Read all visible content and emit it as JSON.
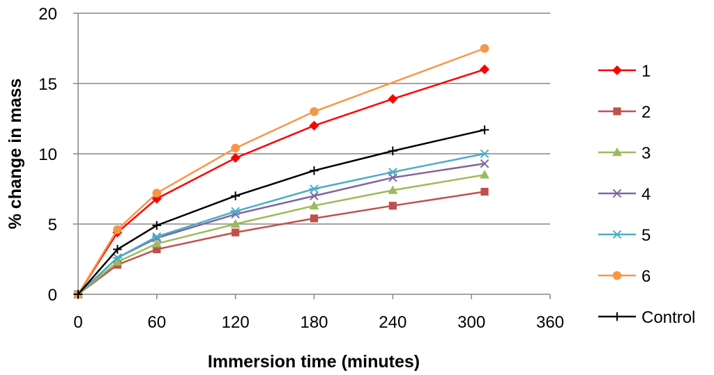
{
  "chart_data": {
    "type": "line",
    "title": "",
    "xlabel": "Immersion time (minutes)",
    "ylabel": "% change in mass",
    "xlim": [
      0,
      360
    ],
    "ylim": [
      0,
      20
    ],
    "xticks": [
      0,
      60,
      120,
      180,
      240,
      300,
      360
    ],
    "yticks": [
      0,
      5,
      10,
      15,
      20
    ],
    "x_tick_labels": [
      "0",
      "60",
      "120",
      "180",
      "240",
      "300",
      "360"
    ],
    "y_tick_labels": [
      "0",
      "5",
      "10",
      "15",
      "20"
    ],
    "grid": "horizontal",
    "legend_position": "right",
    "x": [
      0,
      30,
      60,
      120,
      180,
      240,
      310
    ],
    "series": [
      {
        "name": "1",
        "color": "#ff0000",
        "marker": "diamond",
        "values": [
          0,
          4.4,
          6.8,
          9.7,
          12.0,
          13.9,
          16.0
        ]
      },
      {
        "name": "2",
        "color": "#c0504d",
        "marker": "square",
        "values": [
          0,
          2.1,
          3.2,
          4.4,
          5.4,
          6.3,
          7.3
        ]
      },
      {
        "name": "3",
        "color": "#9bbb59",
        "marker": "triangle",
        "values": [
          0,
          2.3,
          3.6,
          5.0,
          6.3,
          7.4,
          8.5
        ]
      },
      {
        "name": "4",
        "color": "#8064a2",
        "marker": "x",
        "values": [
          0,
          2.6,
          4.0,
          5.7,
          7.0,
          8.3,
          9.3
        ]
      },
      {
        "name": "5",
        "color": "#4bacc6",
        "marker": "star",
        "values": [
          0,
          2.6,
          4.1,
          5.9,
          7.5,
          8.7,
          10.0
        ]
      },
      {
        "name": "6",
        "color": "#f79646",
        "marker": "circle",
        "values": [
          0,
          4.6,
          7.2,
          10.4,
          13.0,
          null,
          17.5
        ]
      },
      {
        "name": "Control",
        "color": "#000000",
        "marker": "plus",
        "values": [
          0,
          3.2,
          4.9,
          7.0,
          8.8,
          10.2,
          11.7
        ]
      }
    ]
  }
}
